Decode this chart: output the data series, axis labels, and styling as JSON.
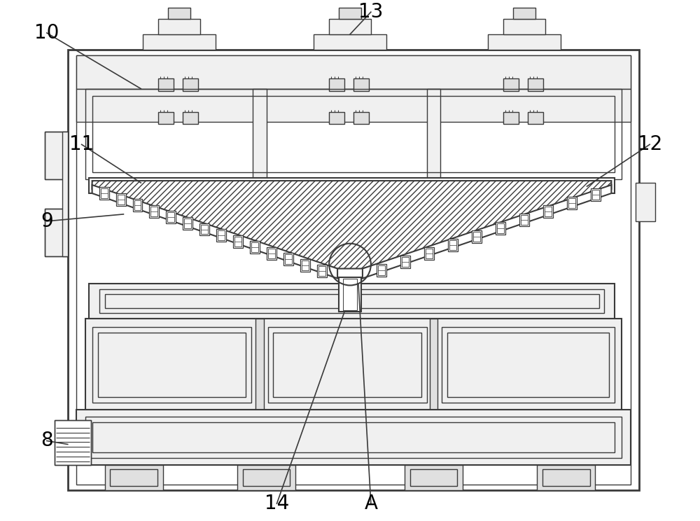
{
  "bg_color": "#ffffff",
  "line_color": "#3a3a3a",
  "lw_outer": 2.0,
  "lw_main": 1.5,
  "lw_thin": 1.0,
  "lw_label": 1.2,
  "label_fontsize": 20,
  "fc_light": "#f0f0f0",
  "fc_mid": "#e0e0e0",
  "fc_dark": "#c8c8c8"
}
